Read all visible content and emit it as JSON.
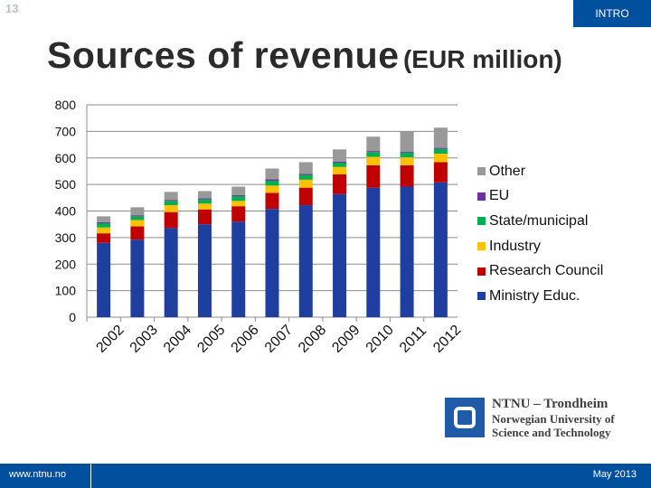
{
  "slide": {
    "number": "13",
    "section": "INTRO"
  },
  "title": {
    "main": "Sources of revenue",
    "sub": "(EUR million)"
  },
  "chart_data": {
    "type": "bar",
    "stacked": true,
    "title": "Sources of revenue (EUR million)",
    "xlabel": "",
    "ylabel": "",
    "ylim": [
      0,
      800
    ],
    "yticks": [
      0,
      100,
      200,
      300,
      400,
      500,
      600,
      700,
      800
    ],
    "grid": true,
    "legend_position": "right",
    "categories": [
      "2002",
      "2003",
      "2004",
      "2005",
      "2006",
      "2007",
      "2008",
      "2009",
      "2010",
      "2011",
      "2012"
    ],
    "series": [
      {
        "name": "Ministry Educ.",
        "color": "#1f3fa0",
        "values": [
          280,
          292,
          336,
          350,
          360,
          408,
          422,
          464,
          488,
          492,
          508
        ]
      },
      {
        "name": "Research Council",
        "color": "#c00000",
        "values": [
          36,
          50,
          60,
          56,
          58,
          60,
          66,
          74,
          84,
          80,
          76
        ]
      },
      {
        "name": "Industry",
        "color": "#ffc000",
        "values": [
          22,
          24,
          26,
          22,
          20,
          28,
          30,
          28,
          32,
          30,
          32
        ]
      },
      {
        "name": "State/municipal",
        "color": "#00b050",
        "values": [
          16,
          14,
          16,
          16,
          18,
          18,
          18,
          16,
          18,
          18,
          18
        ]
      },
      {
        "name": "EU",
        "color": "#7030a0",
        "values": [
          4,
          4,
          4,
          4,
          4,
          6,
          4,
          4,
          4,
          4,
          4
        ]
      },
      {
        "name": "Other",
        "color": "#999999",
        "values": [
          22,
          30,
          30,
          27,
          32,
          40,
          44,
          46,
          54,
          76,
          76
        ]
      }
    ]
  },
  "legend_order": [
    "Other",
    "EU",
    "State/municipal",
    "Industry",
    "Research Council",
    "Ministry Educ."
  ],
  "logo": {
    "name": "NTNU – Trondheim",
    "line1": "Norwegian University of",
    "line2": "Science and Technology"
  },
  "footer": {
    "url": "www.ntnu.no",
    "date": "May 2013"
  }
}
